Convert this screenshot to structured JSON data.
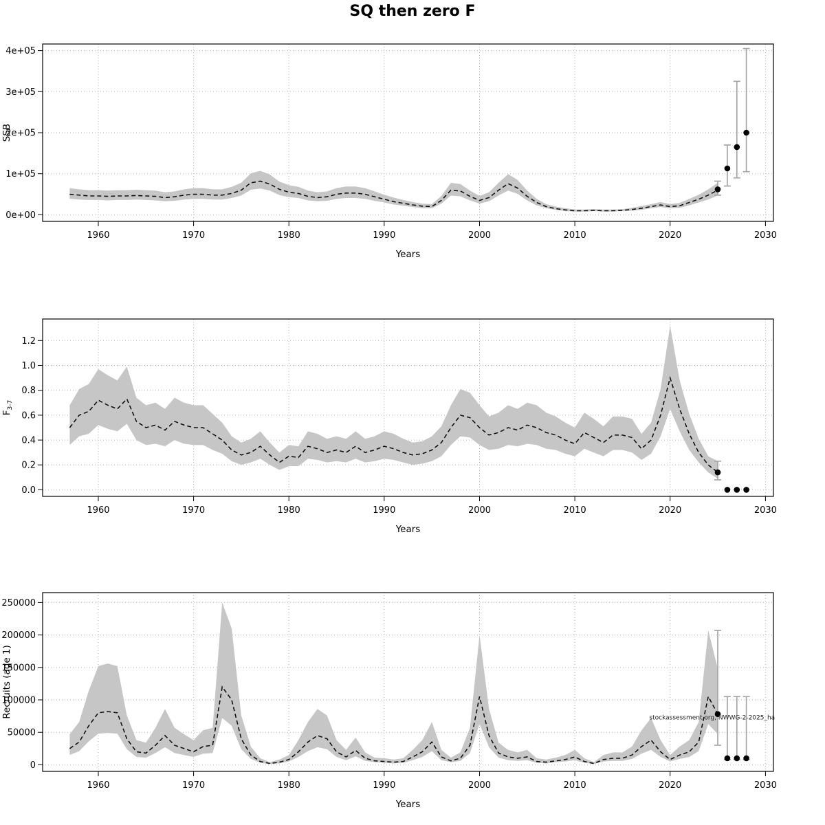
{
  "chart_data": {
    "type": "line",
    "title": "SQ then zero F",
    "source_note": "stockassessment.org, NWWG-2-2025_ha",
    "years": [
      1957,
      1958,
      1959,
      1960,
      1961,
      1962,
      1963,
      1964,
      1965,
      1966,
      1967,
      1968,
      1969,
      1970,
      1971,
      1972,
      1973,
      1974,
      1975,
      1976,
      1977,
      1978,
      1979,
      1980,
      1981,
      1982,
      1983,
      1984,
      1985,
      1986,
      1987,
      1988,
      1989,
      1990,
      1991,
      1992,
      1993,
      1994,
      1995,
      1996,
      1997,
      1998,
      1999,
      2000,
      2001,
      2002,
      2003,
      2004,
      2005,
      2006,
      2007,
      2008,
      2009,
      2010,
      2011,
      2012,
      2013,
      2014,
      2015,
      2016,
      2017,
      2018,
      2019,
      2020,
      2021,
      2022,
      2023,
      2024,
      2025
    ],
    "panels": [
      {
        "id": "ssb",
        "ylabel": "SSB",
        "ylabel_sub": "",
        "xlabel": "Years",
        "xlim": [
          1957,
          2028
        ],
        "ylim": [
          0,
          400000
        ],
        "xticks": [
          1960,
          1970,
          1980,
          1990,
          2000,
          2010,
          2020,
          2030
        ],
        "xtick_labels": [
          "1960",
          "1970",
          "1980",
          "1990",
          "2000",
          "2010",
          "2020",
          "2030"
        ],
        "yticks": [
          0,
          100000,
          200000,
          300000,
          400000
        ],
        "ytick_labels": [
          "0e+00",
          "1e+05",
          "2e+05",
          "3e+05",
          "4e+05"
        ],
        "values": [
          50000,
          48000,
          46000,
          46000,
          45000,
          46000,
          46000,
          47000,
          46000,
          45000,
          42000,
          44000,
          48000,
          50000,
          50000,
          48000,
          48000,
          52000,
          60000,
          78000,
          82000,
          75000,
          62000,
          55000,
          52000,
          45000,
          42000,
          44000,
          50000,
          53000,
          53000,
          50000,
          44000,
          38000,
          32000,
          28000,
          24000,
          21000,
          20000,
          35000,
          60000,
          58000,
          45000,
          35000,
          42000,
          60000,
          76000,
          65000,
          45000,
          30000,
          20000,
          15000,
          12000,
          10000,
          10000,
          11000,
          10000,
          10000,
          11000,
          13000,
          16000,
          20000,
          24000,
          20000,
          22000,
          30000,
          38000,
          48000,
          60000
        ],
        "lo": [
          39000,
          37000,
          36000,
          36000,
          35000,
          36000,
          36000,
          37000,
          36000,
          35000,
          33000,
          34000,
          37000,
          39000,
          39000,
          37000,
          37000,
          41000,
          47000,
          61000,
          64000,
          59000,
          48000,
          43000,
          41000,
          35000,
          33000,
          34000,
          39000,
          41000,
          41000,
          39000,
          34000,
          30000,
          25000,
          22000,
          19000,
          16000,
          16000,
          27000,
          47000,
          45000,
          35000,
          27000,
          33000,
          47000,
          59000,
          51000,
          35000,
          23000,
          16000,
          12000,
          9000,
          8000,
          8000,
          9000,
          8000,
          8000,
          9000,
          10000,
          12000,
          16000,
          19000,
          16000,
          17000,
          23000,
          30000,
          37000,
          47000
        ],
        "hi": [
          65000,
          62000,
          60000,
          60000,
          59000,
          60000,
          60000,
          61000,
          60000,
          59000,
          55000,
          57000,
          62000,
          65000,
          65000,
          62000,
          62000,
          68000,
          78000,
          101000,
          107000,
          98000,
          81000,
          72000,
          68000,
          59000,
          55000,
          57000,
          65000,
          69000,
          69000,
          65000,
          57000,
          49000,
          42000,
          36000,
          31000,
          27000,
          26000,
          46000,
          78000,
          75000,
          59000,
          46000,
          55000,
          78000,
          99000,
          85000,
          59000,
          39000,
          26000,
          20000,
          16000,
          13000,
          13000,
          14000,
          13000,
          13000,
          14000,
          17000,
          21000,
          26000,
          31000,
          26000,
          29000,
          39000,
          49000,
          62000,
          78000
        ],
        "forecast": [
          {
            "year": 2025,
            "value": 62000,
            "lo": 48000,
            "hi": 82000
          },
          {
            "year": 2026,
            "value": 113000,
            "lo": 70000,
            "hi": 170000
          },
          {
            "year": 2027,
            "value": 165000,
            "lo": 90000,
            "hi": 325000
          },
          {
            "year": 2028,
            "value": 200000,
            "lo": 105000,
            "hi": 405000
          }
        ]
      },
      {
        "id": "f-bar",
        "ylabel": "F",
        "ylabel_sub": "3-7",
        "xlabel": "Years",
        "xlim": [
          1957,
          2028
        ],
        "ylim": [
          0,
          1.32
        ],
        "xticks": [
          1960,
          1970,
          1980,
          1990,
          2000,
          2010,
          2020,
          2030
        ],
        "xtick_labels": [
          "1960",
          "1970",
          "1980",
          "1990",
          "2000",
          "2010",
          "2020",
          "2030"
        ],
        "yticks": [
          0.0,
          0.2,
          0.4,
          0.6,
          0.8,
          1.0,
          1.2
        ],
        "ytick_labels": [
          "0.0",
          "0.2",
          "0.4",
          "0.6",
          "0.8",
          "1.0",
          "1.2"
        ],
        "values": [
          0.5,
          0.6,
          0.63,
          0.72,
          0.68,
          0.65,
          0.73,
          0.55,
          0.5,
          0.52,
          0.48,
          0.55,
          0.52,
          0.5,
          0.5,
          0.45,
          0.4,
          0.32,
          0.28,
          0.3,
          0.35,
          0.28,
          0.22,
          0.27,
          0.26,
          0.35,
          0.33,
          0.3,
          0.32,
          0.3,
          0.35,
          0.3,
          0.32,
          0.35,
          0.33,
          0.3,
          0.28,
          0.29,
          0.32,
          0.38,
          0.5,
          0.6,
          0.58,
          0.5,
          0.44,
          0.46,
          0.5,
          0.48,
          0.52,
          0.5,
          0.46,
          0.44,
          0.4,
          0.37,
          0.46,
          0.42,
          0.38,
          0.44,
          0.44,
          0.42,
          0.33,
          0.4,
          0.6,
          0.9,
          0.65,
          0.45,
          0.3,
          0.2,
          0.14
        ],
        "lo": [
          0.36,
          0.43,
          0.45,
          0.52,
          0.49,
          0.47,
          0.53,
          0.4,
          0.36,
          0.37,
          0.35,
          0.4,
          0.37,
          0.36,
          0.36,
          0.32,
          0.29,
          0.23,
          0.2,
          0.22,
          0.25,
          0.2,
          0.16,
          0.19,
          0.19,
          0.25,
          0.24,
          0.22,
          0.23,
          0.22,
          0.25,
          0.22,
          0.23,
          0.25,
          0.24,
          0.22,
          0.2,
          0.21,
          0.23,
          0.27,
          0.36,
          0.43,
          0.42,
          0.36,
          0.32,
          0.33,
          0.36,
          0.35,
          0.37,
          0.36,
          0.33,
          0.32,
          0.29,
          0.27,
          0.33,
          0.3,
          0.27,
          0.32,
          0.32,
          0.3,
          0.24,
          0.29,
          0.43,
          0.65,
          0.47,
          0.32,
          0.22,
          0.14,
          0.09
        ],
        "hi": [
          0.68,
          0.81,
          0.85,
          0.97,
          0.92,
          0.88,
          0.99,
          0.74,
          0.68,
          0.7,
          0.65,
          0.74,
          0.7,
          0.68,
          0.68,
          0.61,
          0.54,
          0.43,
          0.38,
          0.41,
          0.47,
          0.38,
          0.3,
          0.36,
          0.35,
          0.47,
          0.45,
          0.41,
          0.43,
          0.41,
          0.47,
          0.41,
          0.43,
          0.47,
          0.45,
          0.41,
          0.38,
          0.39,
          0.43,
          0.51,
          0.68,
          0.81,
          0.78,
          0.68,
          0.59,
          0.62,
          0.68,
          0.65,
          0.7,
          0.68,
          0.62,
          0.59,
          0.54,
          0.5,
          0.62,
          0.57,
          0.51,
          0.59,
          0.59,
          0.57,
          0.45,
          0.54,
          0.81,
          1.32,
          0.88,
          0.61,
          0.41,
          0.27,
          0.23
        ],
        "forecast": [
          {
            "year": 2025,
            "value": 0.14,
            "lo": 0.08,
            "hi": 0.23
          },
          {
            "year": 2026,
            "value": 0.0,
            "lo": 0.0,
            "hi": 0.0
          },
          {
            "year": 2027,
            "value": 0.0,
            "lo": 0.0,
            "hi": 0.0
          },
          {
            "year": 2028,
            "value": 0.0,
            "lo": 0.0,
            "hi": 0.0
          }
        ]
      },
      {
        "id": "recruits",
        "ylabel": "Recruits (age 1)",
        "ylabel_sub": "",
        "xlabel": "Years",
        "xlim": [
          1957,
          2028
        ],
        "ylim": [
          0,
          255000
        ],
        "xticks": [
          1960,
          1970,
          1980,
          1990,
          2000,
          2010,
          2020,
          2030
        ],
        "xtick_labels": [
          "1960",
          "1970",
          "1980",
          "1990",
          "2000",
          "2010",
          "2020",
          "2030"
        ],
        "yticks": [
          0,
          50000,
          100000,
          150000,
          200000,
          250000
        ],
        "ytick_labels": [
          "0",
          "50000",
          "100000",
          "150000",
          "200000",
          "250000"
        ],
        "values": [
          25000,
          35000,
          60000,
          80000,
          82000,
          80000,
          40000,
          20000,
          18000,
          30000,
          45000,
          30000,
          25000,
          20000,
          28000,
          30000,
          120000,
          100000,
          40000,
          15000,
          5000,
          2000,
          4000,
          8000,
          20000,
          35000,
          45000,
          40000,
          20000,
          12000,
          22000,
          10000,
          6000,
          5000,
          4000,
          5000,
          12000,
          20000,
          35000,
          12000,
          6000,
          10000,
          30000,
          105000,
          45000,
          18000,
          12000,
          10000,
          12000,
          5000,
          4000,
          6000,
          8000,
          12000,
          5000,
          2000,
          8000,
          10000,
          10000,
          15000,
          28000,
          38000,
          20000,
          8000,
          15000,
          20000,
          35000,
          105000,
          78000
        ],
        "lo": [
          15000,
          21000,
          36000,
          48000,
          49000,
          48000,
          24000,
          12000,
          11000,
          18000,
          27000,
          18000,
          15000,
          12000,
          17000,
          18000,
          72000,
          60000,
          24000,
          9000,
          3000,
          1000,
          2000,
          5000,
          12000,
          21000,
          27000,
          24000,
          12000,
          7000,
          13000,
          6000,
          4000,
          3000,
          2000,
          3000,
          7000,
          12000,
          21000,
          7000,
          4000,
          6000,
          18000,
          63000,
          27000,
          11000,
          7000,
          6000,
          7000,
          3000,
          2000,
          4000,
          5000,
          7000,
          3000,
          1000,
          5000,
          6000,
          6000,
          9000,
          17000,
          23000,
          12000,
          5000,
          9000,
          12000,
          21000,
          63000,
          47000
        ],
        "hi": [
          47000,
          66000,
          114000,
          152000,
          156000,
          152000,
          76000,
          38000,
          34000,
          57000,
          86000,
          57000,
          47000,
          38000,
          53000,
          57000,
          250000,
          210000,
          76000,
          28000,
          10000,
          4000,
          8000,
          15000,
          38000,
          66000,
          86000,
          76000,
          38000,
          23000,
          42000,
          19000,
          11000,
          10000,
          8000,
          10000,
          23000,
          38000,
          66000,
          23000,
          11000,
          19000,
          57000,
          200000,
          86000,
          34000,
          23000,
          19000,
          23000,
          10000,
          8000,
          11000,
          15000,
          23000,
          10000,
          4000,
          15000,
          19000,
          19000,
          28000,
          53000,
          72000,
          38000,
          15000,
          28000,
          38000,
          66000,
          207000,
          148000
        ],
        "forecast": [
          {
            "year": 2025,
            "value": 78000,
            "lo": 30000,
            "hi": 207000
          },
          {
            "year": 2026,
            "value": 10000,
            "lo": 8000,
            "hi": 105000
          },
          {
            "year": 2027,
            "value": 10000,
            "lo": 8000,
            "hi": 105000
          },
          {
            "year": 2028,
            "value": 10000,
            "lo": 8000,
            "hi": 105000
          }
        ],
        "note": "stockassessment.org, NWWG-2-2025_ha",
        "note_year": 2031,
        "note_value": 70000
      }
    ]
  }
}
